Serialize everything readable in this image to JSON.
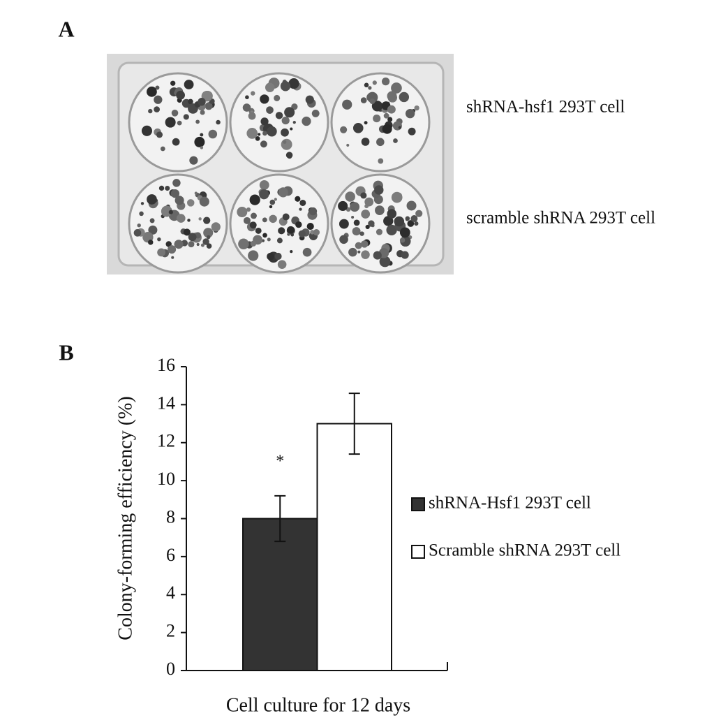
{
  "panel_a": {
    "label": "A",
    "row_labels": [
      "shRNA-hsf1 293T cell",
      "scramble shRNA 293T cell"
    ]
  },
  "chart_data": {
    "type": "bar",
    "panel_label": "B",
    "ylabel": "Colony-forming efficiency (%)",
    "xlabel": "Cell culture for 12 days",
    "series": [
      {
        "name": "shRNA-Hsf1 293T cell",
        "color": "#333333",
        "values": [
          8
        ],
        "errors": [
          1.2
        ]
      },
      {
        "name": "Scramble shRNA 293T cell",
        "color": "#ffffff",
        "values": [
          13
        ],
        "errors": [
          1.6
        ]
      }
    ],
    "annotation": "*",
    "ylim": [
      0,
      16
    ],
    "yticks": [
      0,
      2,
      4,
      6,
      8,
      10,
      12,
      14,
      16
    ],
    "grid": false
  }
}
